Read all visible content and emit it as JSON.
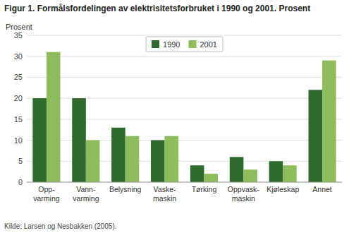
{
  "chart_data": {
    "type": "bar",
    "title": "Figur 1. Formålsfordelingen av elektrisitetsforbruket i 1990 og 2001. Prosent",
    "ylabel": "Prosent",
    "source": "Kilde: Larsen og Nesbakken (2005).",
    "categories": [
      "Opp-\nvarming",
      "Vann-\nvarming",
      "Belysning",
      "Vaske-\nmaskin",
      "Tørking",
      "Oppvask-\nmaskin",
      "Kjøleskap",
      "Annet"
    ],
    "series": [
      {
        "name": "1990",
        "color": "#2d6a2d",
        "values": [
          20,
          20,
          13,
          10,
          4,
          6,
          5,
          22
        ]
      },
      {
        "name": "2001",
        "color": "#8fbc5a",
        "values": [
          31,
          10,
          11,
          11,
          2,
          3,
          4,
          29
        ]
      }
    ],
    "ylim": [
      0,
      35
    ],
    "yticks": [
      0,
      5,
      10,
      15,
      20,
      25,
      30,
      35
    ],
    "grid": true,
    "legend": "upper center"
  }
}
